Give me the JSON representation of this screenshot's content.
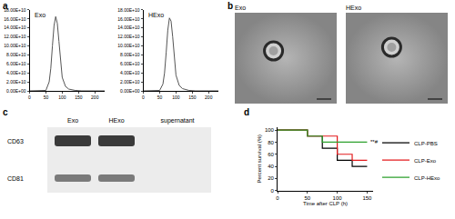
{
  "panel_labels": [
    "a",
    "b",
    "c",
    "d"
  ],
  "chart_data": [
    {
      "type": "line",
      "title": "Exo",
      "x": [
        0,
        40,
        50,
        60,
        65,
        70,
        75,
        80,
        85,
        90,
        95,
        100,
        110,
        120,
        140,
        160,
        200,
        230
      ],
      "values": [
        0,
        0,
        1000000000,
        20000000000,
        50000000000,
        100000000000,
        145000000000,
        165000000000,
        150000000000,
        110000000000,
        60000000000,
        30000000000,
        10000000000,
        4000000000,
        1000000000,
        0,
        0,
        0
      ],
      "color": "#555555",
      "xlim": [
        0,
        230
      ],
      "xticks": [
        0,
        50,
        100,
        150,
        200
      ],
      "ylim": [
        0,
        180000000000
      ],
      "yticks": [
        {
          "value": 0,
          "label": "0.00E+00"
        },
        {
          "value": 20000000000,
          "label": "2.00E+10"
        },
        {
          "value": 40000000000,
          "label": "4.00E+10"
        },
        {
          "value": 60000000000,
          "label": "6.00E+10"
        },
        {
          "value": 80000000000,
          "label": "8.00E+10"
        },
        {
          "value": 100000000000,
          "label": "10.00E+10"
        },
        {
          "value": 120000000000,
          "label": "12.00E+10"
        },
        {
          "value": 140000000000,
          "label": "14.00E+10"
        },
        {
          "value": 160000000000,
          "label": "16.00E+10"
        },
        {
          "value": 180000000000,
          "label": "18.00E+10"
        }
      ],
      "grid": false
    },
    {
      "type": "line",
      "title": "HExo",
      "x": [
        0,
        40,
        50,
        60,
        65,
        70,
        75,
        80,
        85,
        90,
        95,
        100,
        110,
        120,
        140,
        160,
        200,
        230
      ],
      "values": [
        0,
        0,
        1000000000,
        15000000000,
        40000000000,
        85000000000,
        135000000000,
        162000000000,
        155000000000,
        120000000000,
        70000000000,
        35000000000,
        12000000000,
        5000000000,
        1000000000,
        0,
        0,
        0
      ],
      "color": "#555555",
      "xlim": [
        0,
        230
      ],
      "xticks": [
        0,
        50,
        100,
        150,
        200
      ],
      "ylim": [
        0,
        180000000000
      ],
      "yticks": [
        {
          "value": 0,
          "label": "0.00E+00"
        },
        {
          "value": 20000000000,
          "label": "2.00E+10"
        },
        {
          "value": 40000000000,
          "label": "4.00E+10"
        },
        {
          "value": 60000000000,
          "label": "6.00E+10"
        },
        {
          "value": 80000000000,
          "label": "8.00E+10"
        },
        {
          "value": 100000000000,
          "label": "10.00E+10"
        },
        {
          "value": 120000000000,
          "label": "12.00E+10"
        },
        {
          "value": 140000000000,
          "label": "14.00E+10"
        },
        {
          "value": 160000000000,
          "label": "16.00E+10"
        },
        {
          "value": 180000000000,
          "label": "18.00E+10"
        }
      ],
      "grid": false
    },
    {
      "type": "line",
      "line_style": "step",
      "xlabel": "Time after CLP (h)",
      "ylabel": "Percent survival (%)",
      "x": [
        0,
        50,
        75,
        100,
        125,
        150
      ],
      "series": [
        {
          "name": "CLP-PBS",
          "color": "#000000",
          "values": [
            100,
            90,
            70,
            50,
            40,
            40
          ]
        },
        {
          "name": "CLP-Exo",
          "color": "#e31a1c",
          "values": [
            100,
            90,
            90,
            60,
            50,
            50
          ]
        },
        {
          "name": "CLP-HExo",
          "color": "#2ca02c",
          "values": [
            100,
            90,
            80,
            80,
            80,
            80
          ]
        }
      ],
      "xlim": [
        0,
        160
      ],
      "xticks": [
        0,
        50,
        100,
        150
      ],
      "ylim": [
        0,
        105
      ],
      "yticks": [
        0,
        20,
        40,
        60,
        80,
        100
      ],
      "legend": "right",
      "grid": false,
      "annotations": [
        {
          "text": "**#",
          "x": 150,
          "y": 80
        }
      ]
    }
  ],
  "images": [
    {
      "label": "Exo"
    },
    {
      "label": "HExo"
    }
  ],
  "blot": {
    "lanes": [
      "Exo",
      "HExo",
      "supernatant"
    ],
    "rows": [
      {
        "label": "CD63",
        "bands": [
          true,
          true,
          false
        ]
      },
      {
        "label": "CD81",
        "bands": [
          true,
          true,
          false
        ]
      }
    ]
  }
}
